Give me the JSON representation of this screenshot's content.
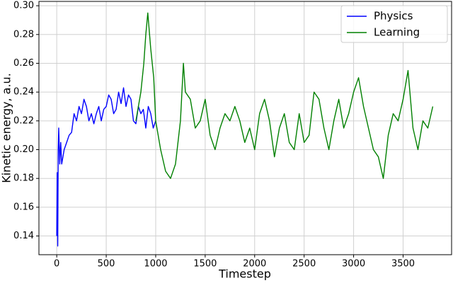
{
  "chart_data": {
    "type": "line",
    "xlabel": "Timestep",
    "ylabel": "Kinetic energy, a.u.",
    "xlim": [
      -180,
      3990
    ],
    "ylim": [
      0.127,
      0.303
    ],
    "xticks": [
      0,
      500,
      1000,
      1500,
      2000,
      2500,
      3000,
      3500
    ],
    "yticks": [
      0.14,
      0.16,
      0.18,
      {
        "value": 0.2,
        "label": "0.20"
      },
      0.22,
      0.24,
      0.26,
      0.28,
      {
        "value": 0.3,
        "label": "0.30"
      }
    ],
    "grid": true,
    "legend": "upper right",
    "series": [
      {
        "name": "Physics",
        "color": "#0000ff",
        "x": [
          0,
          5,
          10,
          15,
          20,
          30,
          40,
          50,
          75,
          100,
          125,
          150,
          175,
          200,
          225,
          250,
          275,
          300,
          325,
          350,
          375,
          400,
          425,
          450,
          475,
          500,
          525,
          550,
          575,
          600,
          625,
          650,
          675,
          700,
          725,
          750,
          775,
          800,
          825,
          850,
          875,
          900,
          925,
          950,
          975,
          1000
        ],
        "values": [
          0.14,
          0.184,
          0.133,
          0.2,
          0.215,
          0.19,
          0.205,
          0.19,
          0.2,
          0.205,
          0.21,
          0.212,
          0.225,
          0.22,
          0.23,
          0.225,
          0.235,
          0.23,
          0.22,
          0.225,
          0.218,
          0.225,
          0.23,
          0.22,
          0.228,
          0.23,
          0.238,
          0.235,
          0.225,
          0.228,
          0.24,
          0.232,
          0.243,
          0.23,
          0.238,
          0.235,
          0.22,
          0.218,
          0.23,
          0.225,
          0.228,
          0.215,
          0.23,
          0.225,
          0.215,
          0.22
        ]
      },
      {
        "name": "Learning",
        "color": "#008000",
        "x": [
          800,
          850,
          880,
          900,
          920,
          950,
          980,
          1000,
          1050,
          1100,
          1150,
          1200,
          1250,
          1280,
          1300,
          1350,
          1400,
          1450,
          1500,
          1550,
          1600,
          1650,
          1700,
          1750,
          1800,
          1850,
          1900,
          1950,
          2000,
          2050,
          2100,
          2150,
          2200,
          2250,
          2300,
          2350,
          2400,
          2450,
          2500,
          2550,
          2600,
          2650,
          2700,
          2750,
          2800,
          2850,
          2900,
          2950,
          3000,
          3050,
          3100,
          3150,
          3200,
          3250,
          3300,
          3350,
          3400,
          3450,
          3500,
          3550,
          3600,
          3650,
          3700,
          3750,
          3800
        ],
        "values": [
          0.22,
          0.24,
          0.26,
          0.28,
          0.295,
          0.27,
          0.25,
          0.22,
          0.2,
          0.185,
          0.18,
          0.19,
          0.22,
          0.26,
          0.24,
          0.235,
          0.215,
          0.22,
          0.235,
          0.21,
          0.2,
          0.215,
          0.225,
          0.22,
          0.23,
          0.22,
          0.205,
          0.215,
          0.2,
          0.225,
          0.235,
          0.22,
          0.195,
          0.215,
          0.225,
          0.205,
          0.2,
          0.225,
          0.205,
          0.21,
          0.24,
          0.235,
          0.215,
          0.2,
          0.22,
          0.235,
          0.215,
          0.225,
          0.24,
          0.25,
          0.23,
          0.215,
          0.2,
          0.195,
          0.18,
          0.21,
          0.225,
          0.22,
          0.235,
          0.255,
          0.215,
          0.2,
          0.22,
          0.215,
          0.23
        ]
      }
    ]
  }
}
